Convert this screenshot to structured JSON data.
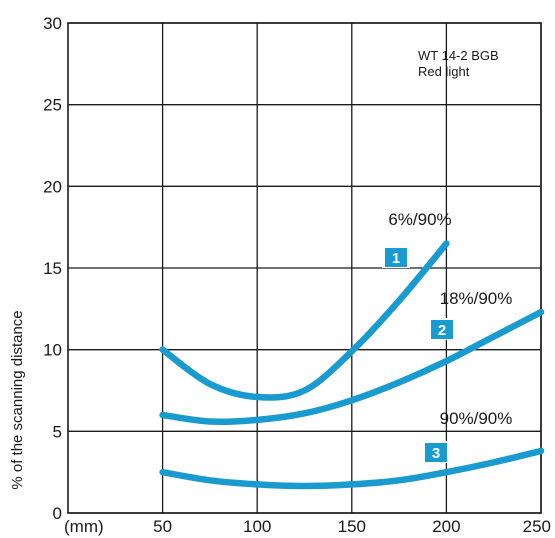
{
  "chart_data": {
    "type": "line",
    "ylabel": "% of the scanning distance",
    "x_unit_label": "(mm)",
    "xlim": [
      0,
      250
    ],
    "ylim": [
      0,
      30
    ],
    "x_ticks": [
      50,
      100,
      150,
      200,
      250
    ],
    "y_ticks": [
      0,
      5,
      10,
      15,
      20,
      25,
      30
    ],
    "grid": true,
    "annotation": [
      "WT 14-2 BGB",
      "Red light"
    ],
    "line_color": "#1A9BD0",
    "series": [
      {
        "name": "6%/90%",
        "badge": "1",
        "points": [
          [
            50,
            10.0
          ],
          [
            75,
            7.9
          ],
          [
            100,
            7.1
          ],
          [
            125,
            7.5
          ],
          [
            150,
            9.9
          ],
          [
            175,
            13.0
          ],
          [
            200,
            16.5
          ]
        ]
      },
      {
        "name": "18%/90%",
        "badge": "2",
        "points": [
          [
            50,
            6.0
          ],
          [
            75,
            5.6
          ],
          [
            100,
            5.7
          ],
          [
            125,
            6.1
          ],
          [
            150,
            6.9
          ],
          [
            175,
            8.0
          ],
          [
            200,
            9.3
          ],
          [
            225,
            10.8
          ],
          [
            250,
            12.3
          ]
        ]
      },
      {
        "name": "90%/90%",
        "badge": "3",
        "points": [
          [
            50,
            2.5
          ],
          [
            75,
            2.0
          ],
          [
            100,
            1.75
          ],
          [
            125,
            1.65
          ],
          [
            150,
            1.75
          ],
          [
            175,
            2.0
          ],
          [
            200,
            2.5
          ],
          [
            225,
            3.1
          ],
          [
            250,
            3.8
          ]
        ]
      }
    ]
  }
}
